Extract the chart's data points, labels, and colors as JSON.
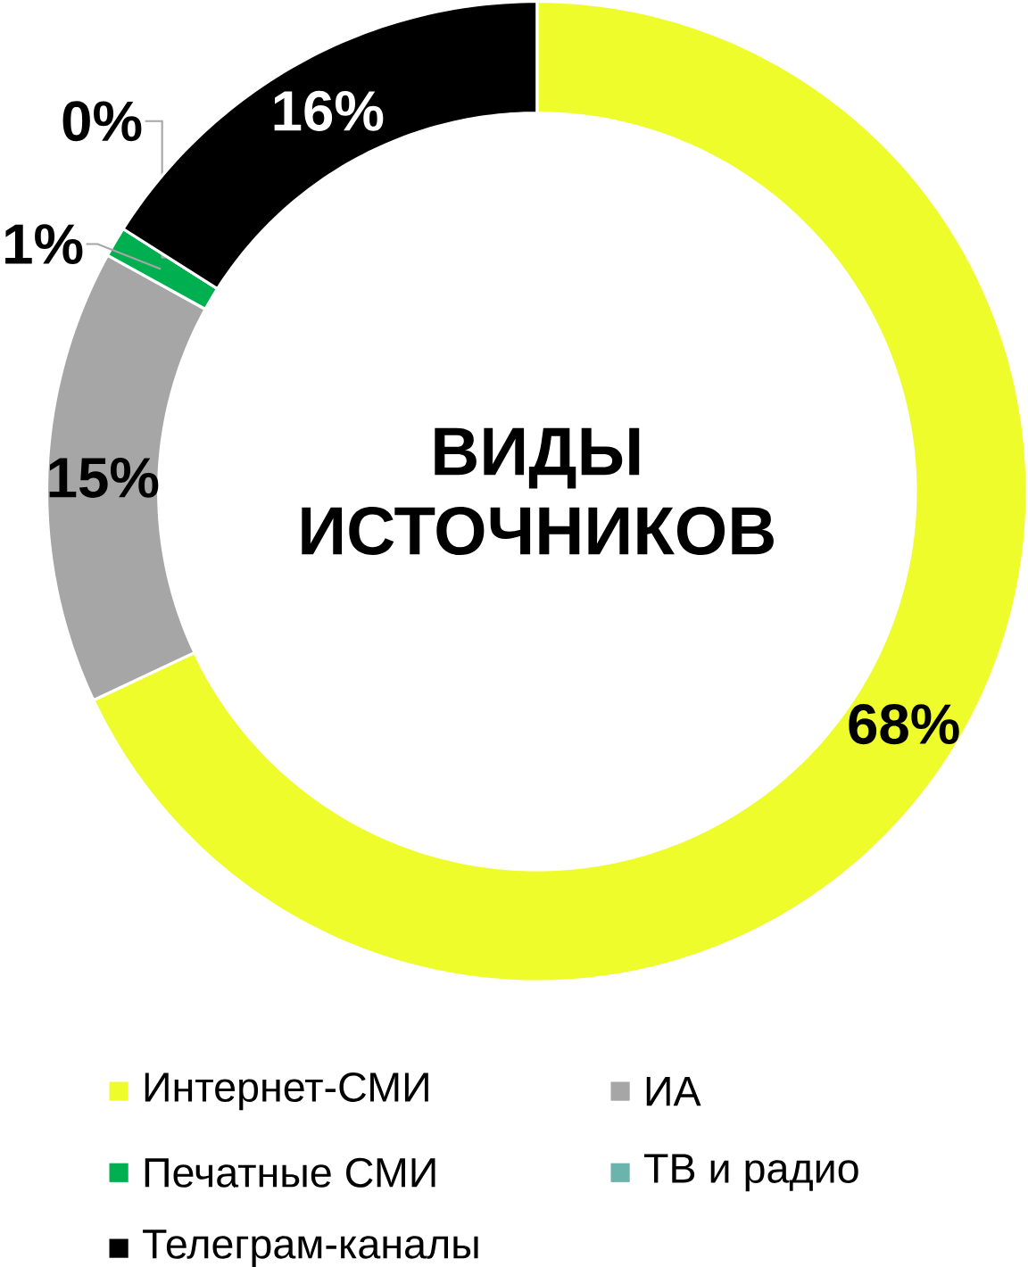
{
  "chart_data": {
    "type": "donut",
    "title": "ВИДЫ ИСТОЧНИКОВ",
    "categories": [
      "Интернет-СМИ",
      "ИА",
      "Печатные СМИ",
      "ТВ и радио",
      "Телеграм-каналы"
    ],
    "values": [
      68,
      15,
      1,
      0,
      16
    ],
    "value_labels": [
      "68%",
      "15%",
      "1%",
      "0%",
      "16%"
    ],
    "colors": [
      "#eefc2c",
      "#a6a6a6",
      "#00b050",
      "#6bb3ad",
      "#000000"
    ],
    "legend": "bottom"
  }
}
